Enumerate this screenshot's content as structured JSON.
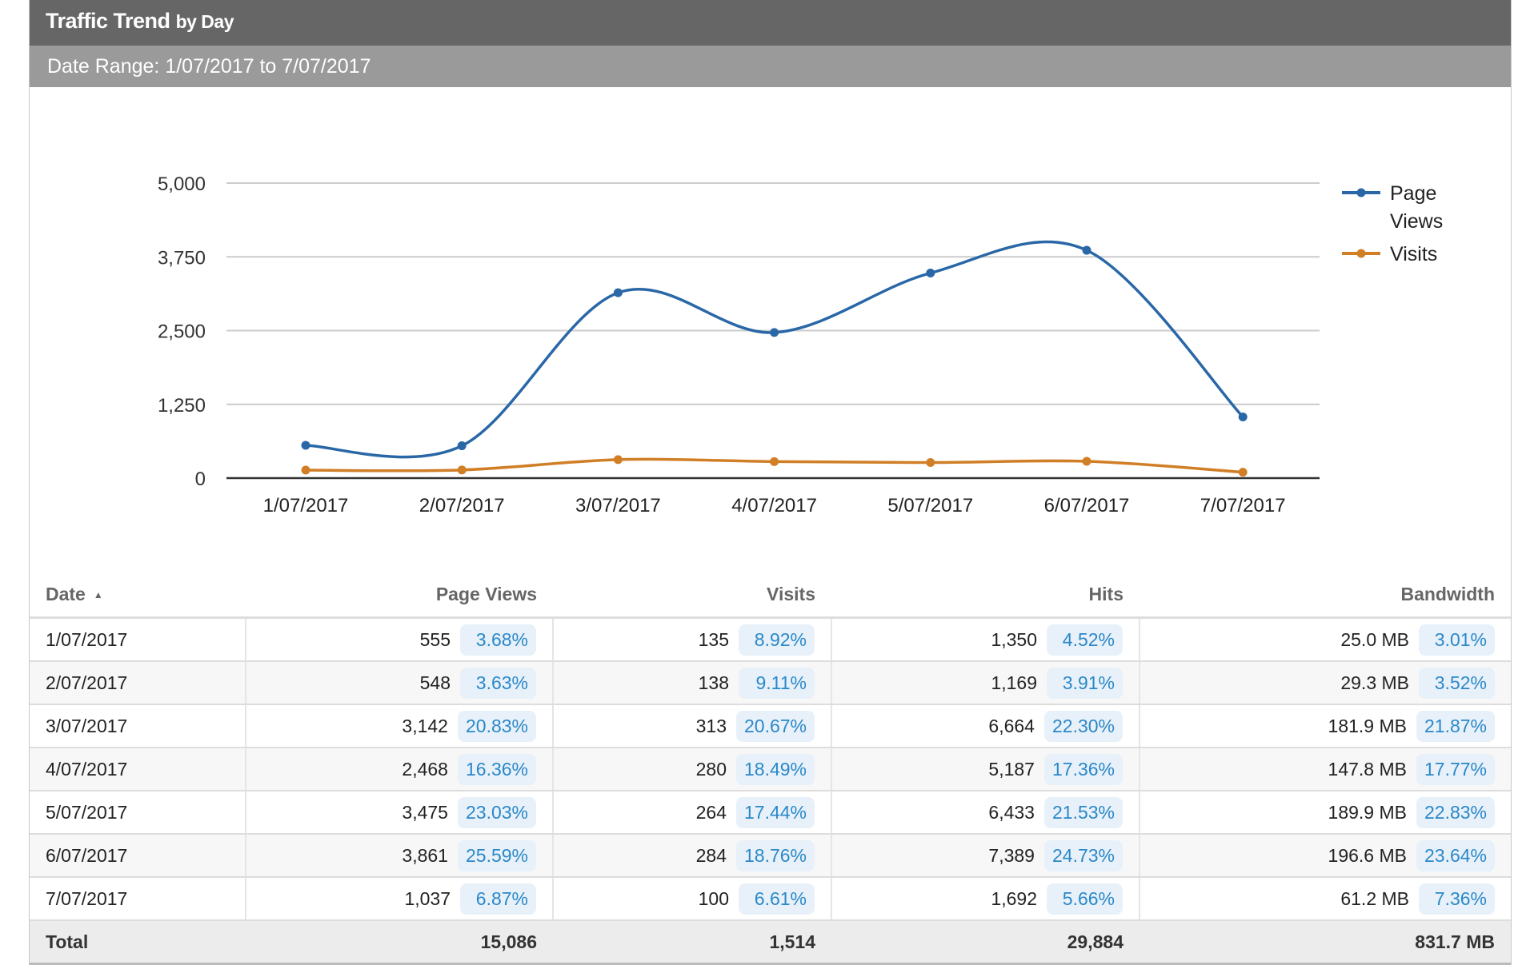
{
  "header": {
    "title": "Traffic Trend",
    "title_suffix": "by Day",
    "date_range": "Date Range: 1/07/2017 to 7/07/2017"
  },
  "chart_data": {
    "type": "line",
    "categories": [
      "1/07/2017",
      "2/07/2017",
      "3/07/2017",
      "4/07/2017",
      "5/07/2017",
      "6/07/2017",
      "7/07/2017"
    ],
    "series": [
      {
        "name": "Page Views",
        "values": [
          555,
          548,
          3142,
          2468,
          3475,
          3861,
          1037
        ],
        "color": "#2a67a6"
      },
      {
        "name": "Visits",
        "values": [
          135,
          138,
          313,
          280,
          264,
          284,
          100
        ],
        "color": "#d17f26"
      }
    ],
    "ylim": [
      0,
      5000
    ],
    "yticks": [
      "0",
      "1,250",
      "2,500",
      "3,750",
      "5,000"
    ],
    "ytick_values": [
      0,
      1250,
      2500,
      3750,
      5000
    ],
    "grid": true,
    "legend": "right",
    "legend_labels": {
      "page_views_line1": "Page",
      "page_views_line2": "Views",
      "visits": "Visits"
    },
    "smooth": true
  },
  "table": {
    "headers": {
      "date": "Date",
      "page_views": "Page Views",
      "visits": "Visits",
      "hits": "Hits",
      "bandwidth": "Bandwidth"
    },
    "sort_indicator": "▲",
    "rows": [
      {
        "date": "1/07/2017",
        "pv": "555",
        "pv_pct": "3.68%",
        "v": "135",
        "v_pct": "8.92%",
        "h": "1,350",
        "h_pct": "4.52%",
        "bw": "25.0 MB",
        "bw_pct": "3.01%"
      },
      {
        "date": "2/07/2017",
        "pv": "548",
        "pv_pct": "3.63%",
        "v": "138",
        "v_pct": "9.11%",
        "h": "1,169",
        "h_pct": "3.91%",
        "bw": "29.3 MB",
        "bw_pct": "3.52%"
      },
      {
        "date": "3/07/2017",
        "pv": "3,142",
        "pv_pct": "20.83%",
        "v": "313",
        "v_pct": "20.67%",
        "h": "6,664",
        "h_pct": "22.30%",
        "bw": "181.9 MB",
        "bw_pct": "21.87%"
      },
      {
        "date": "4/07/2017",
        "pv": "2,468",
        "pv_pct": "16.36%",
        "v": "280",
        "v_pct": "18.49%",
        "h": "5,187",
        "h_pct": "17.36%",
        "bw": "147.8 MB",
        "bw_pct": "17.77%"
      },
      {
        "date": "5/07/2017",
        "pv": "3,475",
        "pv_pct": "23.03%",
        "v": "264",
        "v_pct": "17.44%",
        "h": "6,433",
        "h_pct": "21.53%",
        "bw": "189.9 MB",
        "bw_pct": "22.83%"
      },
      {
        "date": "6/07/2017",
        "pv": "3,861",
        "pv_pct": "25.59%",
        "v": "284",
        "v_pct": "18.76%",
        "h": "7,389",
        "h_pct": "24.73%",
        "bw": "196.6 MB",
        "bw_pct": "23.64%"
      },
      {
        "date": "7/07/2017",
        "pv": "1,037",
        "pv_pct": "6.87%",
        "v": "100",
        "v_pct": "6.61%",
        "h": "1,692",
        "h_pct": "5.66%",
        "bw": "61.2 MB",
        "bw_pct": "7.36%"
      }
    ],
    "total": {
      "label": "Total",
      "pv": "15,086",
      "v": "1,514",
      "h": "29,884",
      "bw": "831.7 MB"
    }
  }
}
